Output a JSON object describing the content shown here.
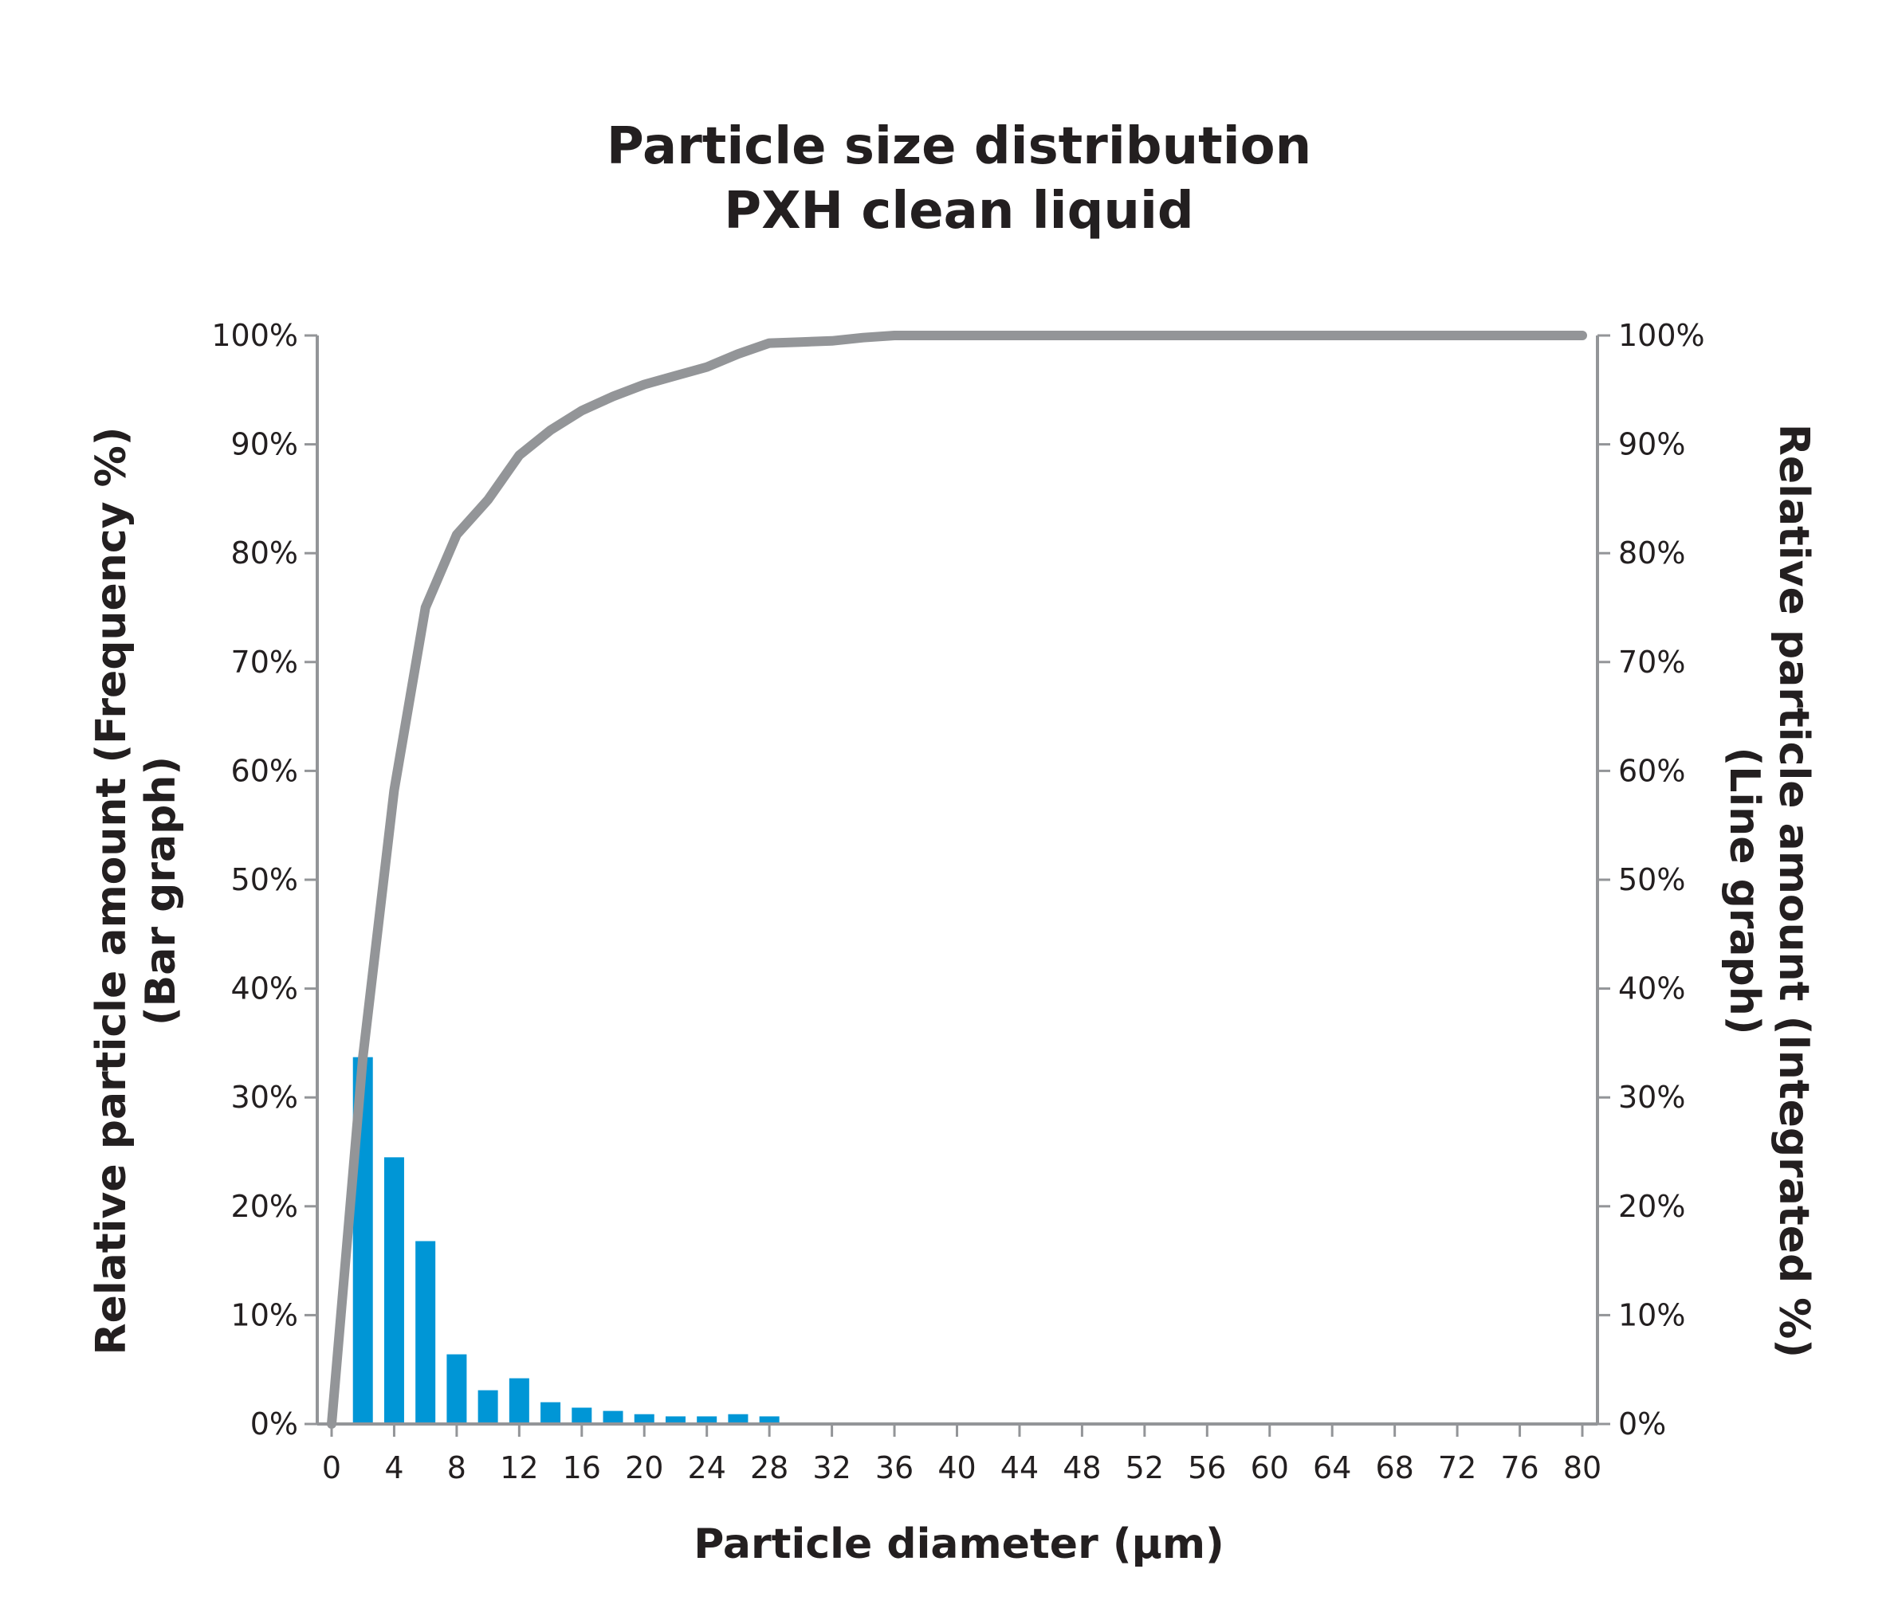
{
  "chart_data": {
    "type": "bar",
    "title": "Particle size distribution",
    "subtitle": "PXH clean liquid",
    "xlabel": "Particle diameter (µm)",
    "ylabel_left": "Relative particle amount (Frequency %)",
    "ylabel_left_sub": "(Bar graph)",
    "ylabel_right": "Relative particle amount (Integrated %)",
    "ylabel_right_sub": "(Line graph)",
    "xlim": [
      0,
      80
    ],
    "ylim": [
      0,
      100
    ],
    "x_ticks": [
      "0",
      "4",
      "8",
      "12",
      "16",
      "20",
      "24",
      "28",
      "32",
      "36",
      "40",
      "44",
      "48",
      "52",
      "56",
      "60",
      "64",
      "68",
      "72",
      "76",
      "80"
    ],
    "y_ticks_left": [
      "0%",
      "10%",
      "20%",
      "30%",
      "40%",
      "50%",
      "60%",
      "70%",
      "80%",
      "90%",
      "100%"
    ],
    "y_ticks_right": [
      "0%",
      "10%",
      "20%",
      "30%",
      "40%",
      "50%",
      "60%",
      "70%",
      "80%",
      "90%",
      "100%"
    ],
    "grid": false,
    "legend": "none",
    "series": [
      {
        "type": "bar",
        "color": "#0096d6",
        "x": [
          2,
          4,
          6,
          8,
          10,
          12,
          14,
          16,
          18,
          20,
          22,
          24,
          26,
          28
        ],
        "values": [
          33.7,
          24.5,
          16.8,
          6.4,
          3.1,
          4.2,
          2.0,
          1.5,
          1.2,
          0.9,
          0.7,
          0.7,
          0.9,
          0.7
        ]
      },
      {
        "type": "line",
        "color": "#939598",
        "x": [
          0,
          2,
          4,
          6,
          8,
          10,
          12,
          14,
          16,
          18,
          20,
          22,
          24,
          26,
          28,
          30,
          32,
          34,
          36,
          38,
          40,
          80
        ],
        "values": [
          0,
          33.7,
          58.2,
          75.0,
          81.7,
          84.9,
          89.0,
          91.3,
          93.1,
          94.4,
          95.5,
          96.3,
          97.1,
          98.3,
          99.3,
          99.4,
          99.5,
          99.8,
          100,
          100,
          100,
          100
        ]
      }
    ]
  }
}
